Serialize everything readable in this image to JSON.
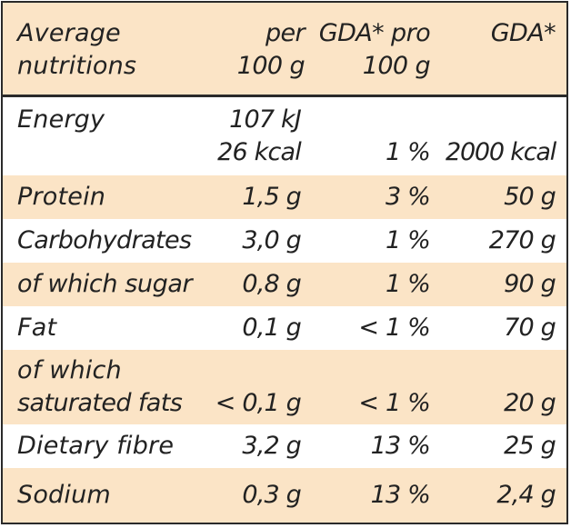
{
  "header": {
    "label_line1": "Average",
    "label_line2": "nutritions",
    "per_line1": "per",
    "per_line2": "100 g",
    "gda_pro_line1": "GDA* pro",
    "gda_pro_line2": "100 g",
    "gda": "GDA*"
  },
  "rows": [
    {
      "label_line1": "Energy",
      "value_line1": "107 kJ",
      "value_line2": "26 kcal",
      "pct": "1 %",
      "gda": "2000 kcal",
      "shaded": false
    },
    {
      "label": "Protein",
      "value": "1,5 g",
      "pct": "3 %",
      "gda": "50 g",
      "shaded": true
    },
    {
      "label": "Carbohydrates",
      "value": "3,0 g",
      "pct": "1 %",
      "gda": "270 g",
      "shaded": false
    },
    {
      "label": "of which sugar",
      "value": "0,8 g",
      "pct": "1 %",
      "gda": "90 g",
      "shaded": true
    },
    {
      "label": "Fat",
      "value": "0,1 g",
      "pct": "< 1 %",
      "gda": "70 g",
      "shaded": false
    },
    {
      "label_line1": "of which",
      "label_line2": "saturated fats",
      "value": "< 0,1 g",
      "pct": "< 1 %",
      "gda": "20 g",
      "shaded": true
    },
    {
      "label": "Dietary fibre",
      "value": "3,2 g",
      "pct": "13 %",
      "gda": "25 g",
      "shaded": false
    },
    {
      "label": "Sodium",
      "value": "0,3 g",
      "pct": "13 %",
      "gda": "2,4 g",
      "shaded": true
    }
  ],
  "colors": {
    "shade": "#fbe4c6",
    "border": "#2a2a2a",
    "text": "#222222"
  }
}
